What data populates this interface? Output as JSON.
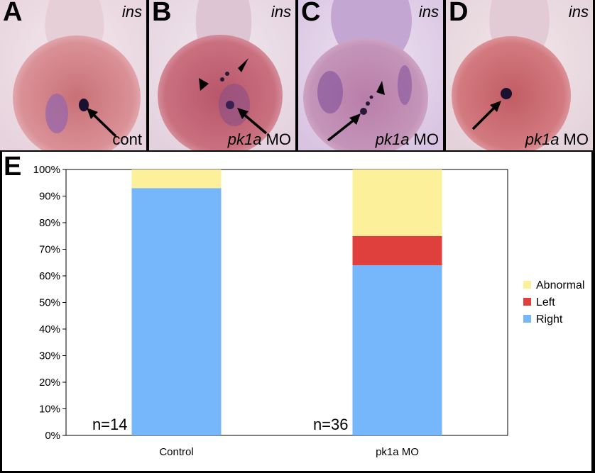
{
  "panels": [
    {
      "label": "A",
      "gene": "ins",
      "treat_italic": "",
      "treat_plain": "cont"
    },
    {
      "label": "B",
      "gene": "ins",
      "treat_italic": "pk1a",
      "treat_plain": " MO"
    },
    {
      "label": "C",
      "gene": "ins",
      "treat_italic": "pk1a",
      "treat_plain": " MO"
    },
    {
      "label": "D",
      "gene": "ins",
      "treat_italic": "pk1a",
      "treat_plain": " MO"
    }
  ],
  "chart_label": "E",
  "colors": {
    "abnormal": "#fdf09b",
    "left": "#e0403d",
    "right": "#76b6fb"
  },
  "chart_data": {
    "type": "bar",
    "stacked": true,
    "percent": true,
    "categories": [
      "Control",
      "pk1a MO"
    ],
    "series": [
      {
        "name": "Right",
        "values": [
          93,
          64
        ]
      },
      {
        "name": "Left",
        "values": [
          0,
          11
        ]
      },
      {
        "name": "Abnormal",
        "values": [
          7,
          25
        ]
      }
    ],
    "n_labels": [
      "n=14",
      "n=36"
    ],
    "ylim": [
      0,
      100
    ],
    "yticks": [
      "0%",
      "10%",
      "20%",
      "30%",
      "40%",
      "50%",
      "60%",
      "70%",
      "80%",
      "90%",
      "100%"
    ],
    "legend": [
      "Abnormal",
      "Left",
      "Right"
    ],
    "legend_position": "right",
    "grid": false
  }
}
